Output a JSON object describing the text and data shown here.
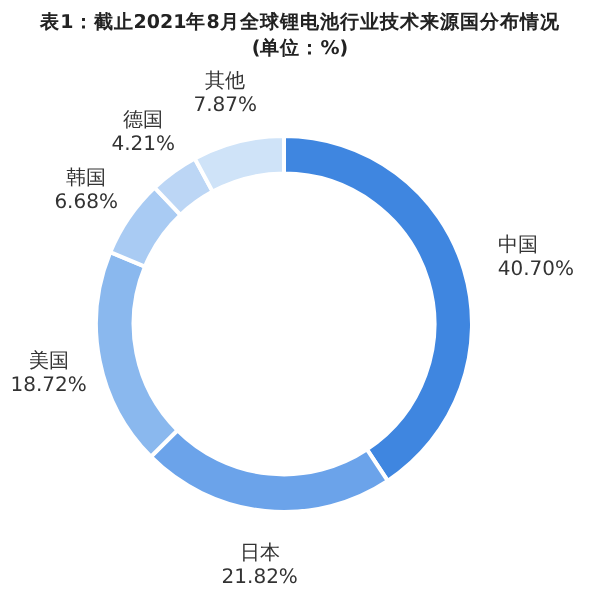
{
  "chart_data": {
    "type": "donut",
    "title": "表1：截止2021年8月全球锂电池行业技术来源国分布情况(单位：%)",
    "categories": [
      "中国",
      "日本",
      "美国",
      "韩国",
      "德国",
      "其他"
    ],
    "values": [
      40.7,
      21.82,
      18.72,
      6.68,
      4.21,
      7.87
    ],
    "colors": [
      "#3f86e0",
      "#6ba3ea",
      "#8ab8ee",
      "#a9cbf3",
      "#bcd6f5",
      "#cfe3f8"
    ],
    "value_labels": [
      "40.70%",
      "21.82%",
      "18.72%",
      "6.68%",
      "4.21%",
      "7.87%"
    ],
    "legend": false
  }
}
